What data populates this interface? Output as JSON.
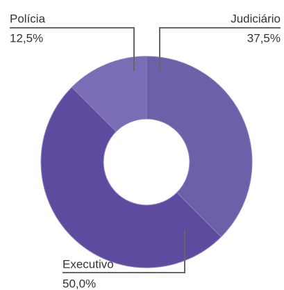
{
  "chart_data": {
    "type": "pie",
    "categories": [
      "Judiciário",
      "Executivo",
      "Polícia"
    ],
    "values": [
      37.5,
      50,
      12.5
    ],
    "value_labels": [
      "37,5%",
      "50,0%",
      "12,5%"
    ],
    "colors": [
      "#6c60a9",
      "#5e4b9f",
      "#7a6db6"
    ]
  }
}
